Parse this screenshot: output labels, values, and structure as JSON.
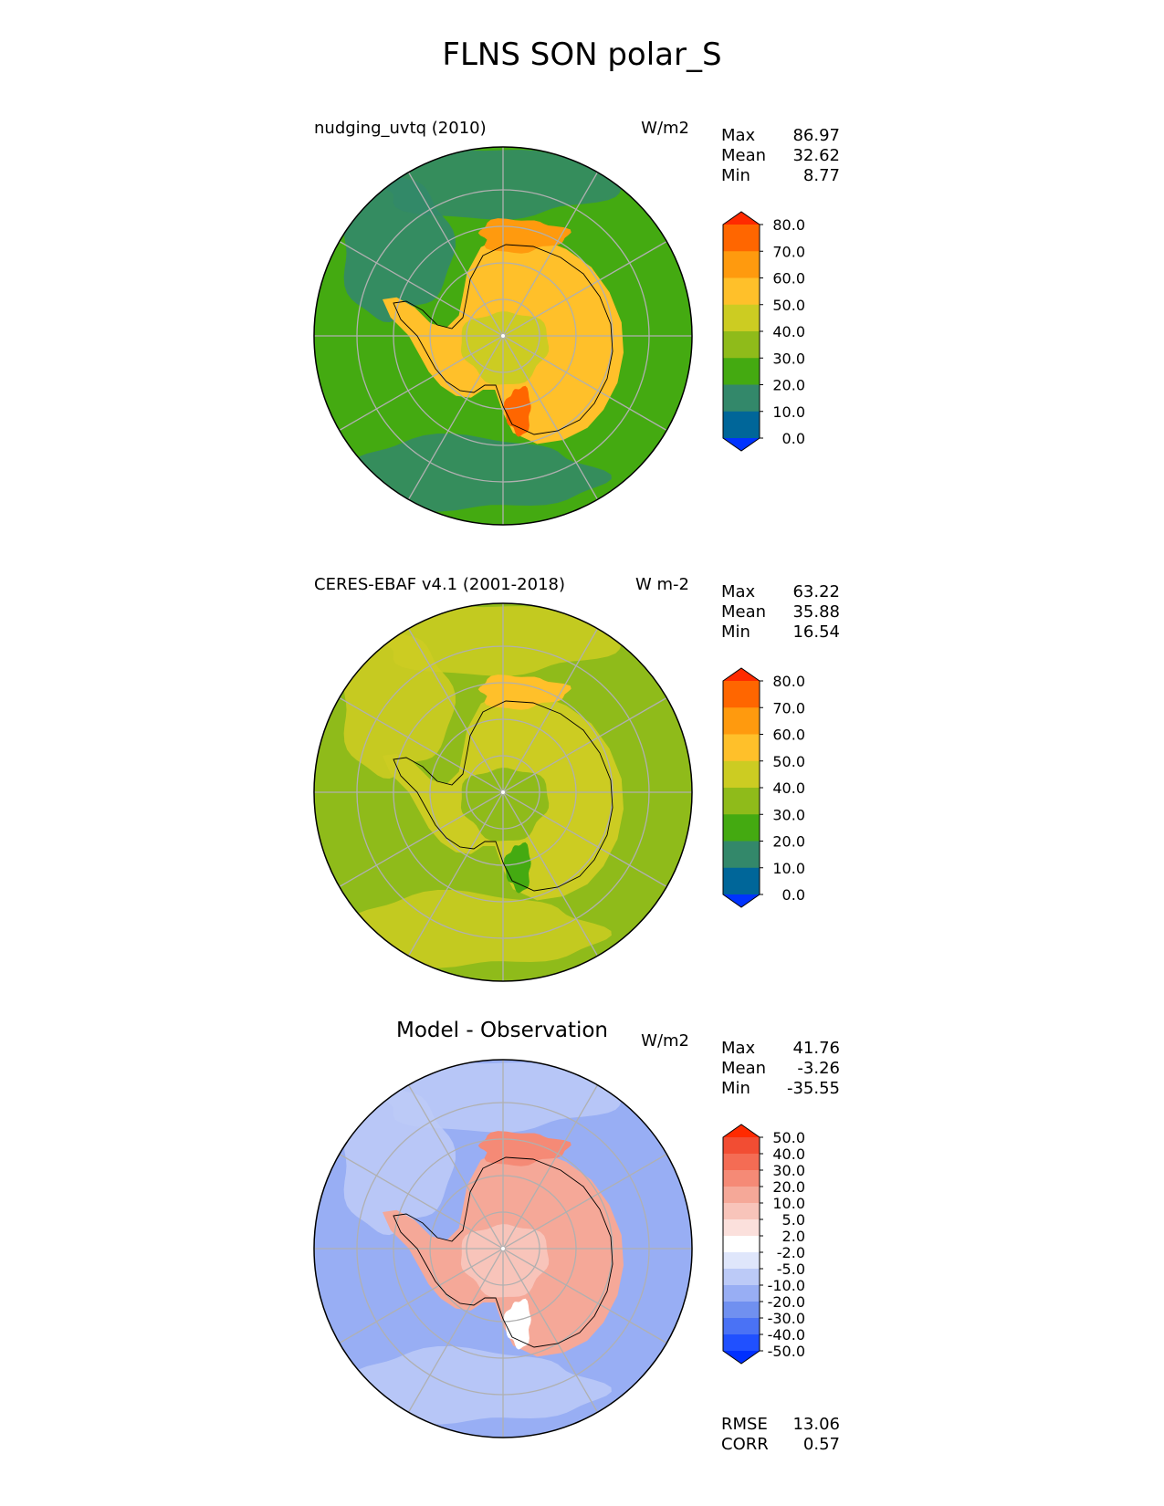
{
  "title": "FLNS SON polar_S",
  "panels": [
    {
      "title": "nudging_uvtq (2010)",
      "units": "W/m2",
      "stats": [
        {
          "label": "Max",
          "value": "86.97"
        },
        {
          "label": "Mean",
          "value": "32.62"
        },
        {
          "label": "Min",
          "value": "8.77"
        }
      ],
      "colorbar": {
        "colors": [
          "#0033ff",
          "#006699",
          "#33886a",
          "#44aa11",
          "#8fbb1a",
          "#cccc22",
          "#ffc02a",
          "#ff9a0e",
          "#ff6600",
          "#ff2a00"
        ],
        "ticks": [
          "80.0",
          "70.0",
          "60.0",
          "50.0",
          "40.0",
          "30.0",
          "20.0",
          "10.0",
          "0.0"
        ]
      },
      "map_fields": {
        "ocean": "#44aa11",
        "outer_band": "#33886a",
        "continent": "#ffc02a",
        "interior": "#cccc22",
        "hot": "#ff9a0e",
        "hottest": "#ff6600"
      }
    },
    {
      "title": "CERES-EBAF v4.1 (2001-2018)",
      "units": "W m-2",
      "stats": [
        {
          "label": "Max",
          "value": "63.22"
        },
        {
          "label": "Mean",
          "value": "35.88"
        },
        {
          "label": "Min",
          "value": "16.54"
        }
      ],
      "colorbar": {
        "colors": [
          "#0033ff",
          "#006699",
          "#33886a",
          "#44aa11",
          "#8fbb1a",
          "#cccc22",
          "#ffc02a",
          "#ff9a0e",
          "#ff6600",
          "#ff2a00"
        ],
        "ticks": [
          "80.0",
          "70.0",
          "60.0",
          "50.0",
          "40.0",
          "30.0",
          "20.0",
          "10.0",
          "0.0"
        ]
      },
      "map_fields": {
        "ocean": "#8fbb1a",
        "outer_band": "#cccc22",
        "continent": "#cccc22",
        "interior": "#8fbb1a",
        "hot": "#ffc02a",
        "hottest": "#44aa11"
      }
    },
    {
      "title": "Model - Observation",
      "units": "W/m2",
      "stats": [
        {
          "label": "Max",
          "value": "41.76"
        },
        {
          "label": "Mean",
          "value": "-3.26"
        },
        {
          "label": "Min",
          "value": "-35.55"
        }
      ],
      "colorbar": {
        "colors": [
          "#0030ff",
          "#2050ff",
          "#4a72f5",
          "#7090f0",
          "#98aef4",
          "#bccaf7",
          "#dfe6fb",
          "#ffffff",
          "#fbe0dc",
          "#f8c4ba",
          "#f5a898",
          "#f58a76",
          "#f46c54",
          "#f24d33",
          "#ff2a00"
        ],
        "ticks": [
          "50.0",
          "40.0",
          "30.0",
          "20.0",
          "10.0",
          "5.0",
          "2.0",
          "-2.0",
          "-5.0",
          "-10.0",
          "-20.0",
          "-30.0",
          "-40.0",
          "-50.0"
        ]
      },
      "map_fields": {
        "ocean": "#98aef4",
        "outer_band": "#bccaf7",
        "continent": "#f5a898",
        "interior": "#f8c4ba",
        "hot": "#f58a76",
        "hottest": "#ffffff"
      },
      "bottom_stats": [
        {
          "label": "RMSE",
          "value": "13.06"
        },
        {
          "label": "CORR",
          "value": "0.57"
        }
      ]
    }
  ]
}
